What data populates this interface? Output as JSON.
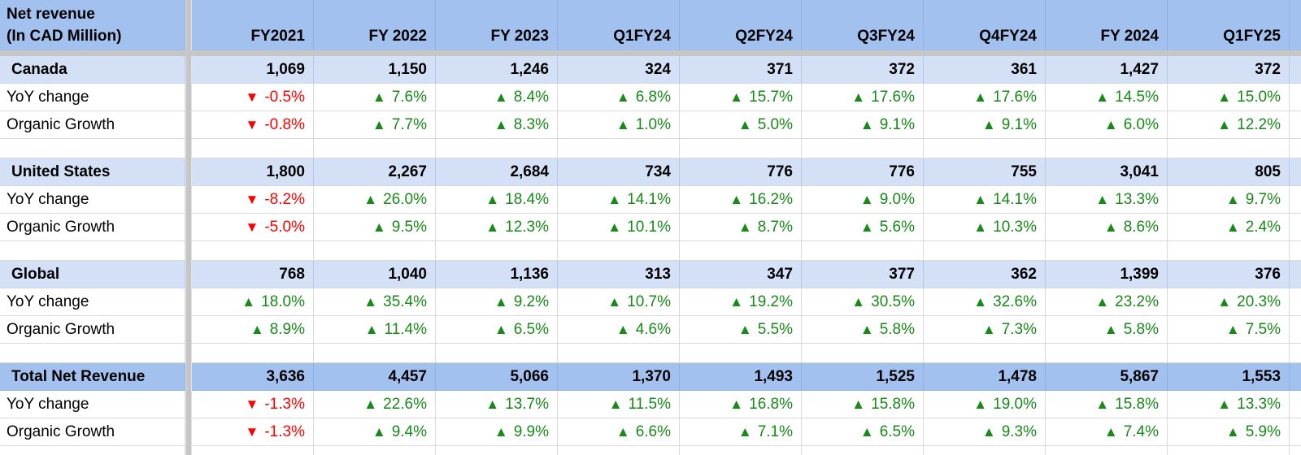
{
  "chart_data": {
    "type": "table",
    "title": {
      "line1": "Net revenue",
      "line2": "(In CAD Million)"
    },
    "columns": [
      "FY2021",
      "FY 2022",
      "FY 2023",
      "Q1FY24",
      "Q2FY24",
      "Q3FY24",
      "Q4FY24",
      "FY 2024",
      "Q1FY25"
    ],
    "row_labels": {
      "yoy": "YoY change",
      "organic": "Organic Growth"
    },
    "icons": {
      "up": "▲",
      "down": "▼"
    },
    "colors": {
      "header_fill": "#a3c1ef",
      "section_fill": "#d3e0f6",
      "total_fill": "#a3c1ef",
      "positive": "#178a17",
      "negative": "#fe0000",
      "separator": "#c6c6c6",
      "gridline": "#d9d9d9"
    },
    "sections": [
      {
        "name": "Canada",
        "fill": "light",
        "revenue": [
          "1,069",
          "1,150",
          "1,246",
          "324",
          "371",
          "372",
          "361",
          "1,427",
          "372"
        ],
        "yoy": [
          "-0.5%",
          "7.6%",
          "8.4%",
          "6.8%",
          "15.7%",
          "17.6%",
          "17.6%",
          "14.5%",
          "15.0%"
        ],
        "organic": [
          "-0.8%",
          "7.7%",
          "8.3%",
          "1.0%",
          "5.0%",
          "9.1%",
          "9.1%",
          "6.0%",
          "12.2%"
        ]
      },
      {
        "name": "United States",
        "fill": "light",
        "revenue": [
          "1,800",
          "2,267",
          "2,684",
          "734",
          "776",
          "776",
          "755",
          "3,041",
          "805"
        ],
        "yoy": [
          "-8.2%",
          "26.0%",
          "18.4%",
          "14.1%",
          "16.2%",
          "9.0%",
          "14.1%",
          "13.3%",
          "9.7%"
        ],
        "organic": [
          "-5.0%",
          "9.5%",
          "12.3%",
          "10.1%",
          "8.7%",
          "5.6%",
          "10.3%",
          "8.6%",
          "2.4%"
        ]
      },
      {
        "name": "Global",
        "fill": "light",
        "revenue": [
          "768",
          "1,040",
          "1,136",
          "313",
          "347",
          "377",
          "362",
          "1,399",
          "376"
        ],
        "yoy": [
          "18.0%",
          "35.4%",
          "9.2%",
          "10.7%",
          "19.2%",
          "30.5%",
          "32.6%",
          "23.2%",
          "20.3%"
        ],
        "organic": [
          "8.9%",
          "11.4%",
          "6.5%",
          "4.6%",
          "5.5%",
          "5.8%",
          "7.3%",
          "5.8%",
          "7.5%"
        ]
      },
      {
        "name": "Total Net Revenue",
        "fill": "strong",
        "revenue": [
          "3,636",
          "4,457",
          "5,066",
          "1,370",
          "1,493",
          "1,525",
          "1,478",
          "5,867",
          "1,553"
        ],
        "yoy": [
          "-1.3%",
          "22.6%",
          "13.7%",
          "11.5%",
          "16.8%",
          "15.8%",
          "19.0%",
          "15.8%",
          "13.3%"
        ],
        "organic": [
          "-1.3%",
          "9.4%",
          "9.9%",
          "6.6%",
          "7.1%",
          "6.5%",
          "9.3%",
          "7.4%",
          "5.9%"
        ]
      }
    ]
  }
}
